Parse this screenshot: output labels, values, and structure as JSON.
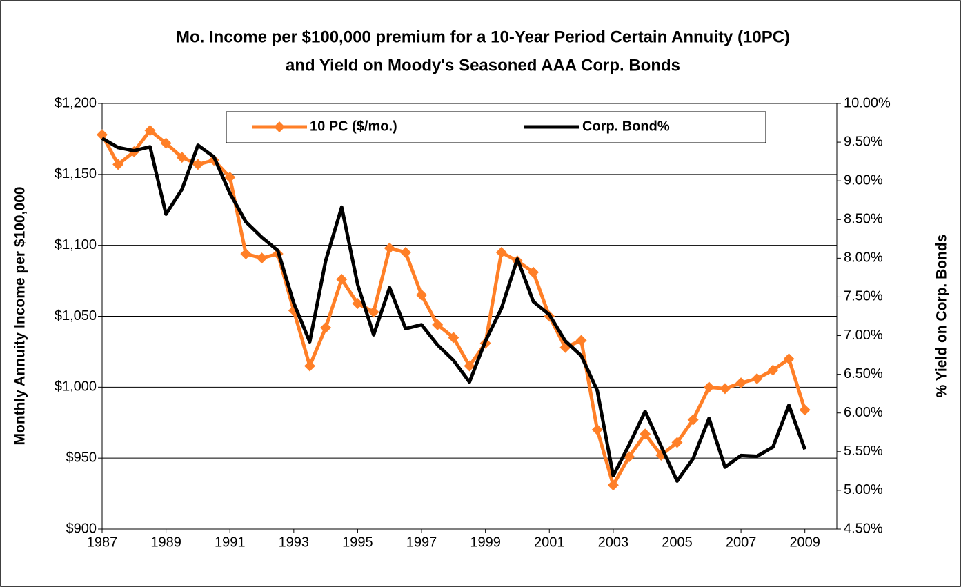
{
  "chart_data": {
    "type": "line",
    "title": "Mo. Income per $100,000 premium for a 10-Year Period Certain Annuity (10PC)",
    "subtitle": "and Yield on Moody's Seasoned AAA Corp. Bonds",
    "y_label": "Monthly Annuity Income per $100,000",
    "y2_label": "% Yield on Corp. Bonds",
    "x": [
      1987,
      1987.5,
      1988,
      1988.5,
      1989,
      1989.5,
      1990,
      1990.5,
      1991,
      1991.5,
      1992,
      1992.5,
      1993,
      1993.5,
      1994,
      1994.5,
      1995,
      1995.5,
      1996,
      1996.5,
      1997,
      1997.5,
      1998,
      1998.5,
      1999,
      1999.5,
      2000,
      2000.5,
      2001,
      2001.5,
      2002,
      2002.5,
      2003,
      2003.5,
      2004,
      2004.5,
      2005,
      2005.5,
      2006,
      2006.5,
      2007,
      2007.5,
      2008,
      2008.5,
      2009
    ],
    "series": [
      {
        "name": "10 PC ($/mo.)",
        "color": "#ff7f27",
        "marker": "diamond",
        "values": [
          1178,
          1157,
          1166,
          1181,
          1172,
          1162,
          1157,
          1160,
          1148,
          1094,
          1091,
          1094,
          1054,
          1015,
          1042,
          1076,
          1059,
          1053,
          1098,
          1095,
          1065,
          1044,
          1035,
          1015,
          1031,
          1095,
          1089,
          1081,
          1050,
          1028,
          1033,
          970,
          931,
          951,
          967,
          952,
          961,
          977,
          1000,
          999,
          1003,
          1006,
          1012,
          1020,
          984
        ]
      },
      {
        "name": "Corp. Bond%",
        "color": "#000000",
        "axis": "y2",
        "values": [
          9.55,
          9.43,
          9.39,
          9.44,
          8.57,
          8.89,
          9.46,
          9.31,
          8.84,
          8.47,
          8.27,
          8.1,
          7.42,
          6.92,
          7.97,
          8.66,
          7.66,
          7.01,
          7.62,
          7.09,
          7.14,
          6.88,
          6.68,
          6.4,
          6.93,
          7.35,
          7.99,
          7.44,
          7.27,
          6.93,
          6.74,
          6.29,
          5.19,
          5.59,
          6.02,
          5.57,
          5.12,
          5.41,
          5.93,
          5.3,
          5.45,
          5.44,
          5.56,
          6.1,
          5.53
        ]
      }
    ],
    "xlim": [
      1987,
      2010
    ],
    "xticks": [
      1987,
      1989,
      1991,
      1993,
      1995,
      1997,
      1999,
      2001,
      2003,
      2005,
      2007,
      2009
    ],
    "ylim": [
      900,
      1200
    ],
    "yticks": [
      {
        "value": 900,
        "label": "$900"
      },
      {
        "value": 950,
        "label": "$950"
      },
      {
        "value": 1000,
        "label": "$1,000"
      },
      {
        "value": 1050,
        "label": "$1,050"
      },
      {
        "value": 1100,
        "label": "$1,100"
      },
      {
        "value": 1150,
        "label": "$1,150"
      },
      {
        "value": 1200,
        "label": "$1,200"
      }
    ],
    "y2lim": [
      4.5,
      10
    ],
    "y2ticks": [
      {
        "value": 4.5,
        "label": "4.50%"
      },
      {
        "value": 5,
        "label": "5.00%"
      },
      {
        "value": 5.5,
        "label": "5.50%"
      },
      {
        "value": 6,
        "label": "6.00%"
      },
      {
        "value": 6.5,
        "label": "6.50%"
      },
      {
        "value": 7,
        "label": "7.00%"
      },
      {
        "value": 7.5,
        "label": "7.50%"
      },
      {
        "value": 8,
        "label": "8.00%"
      },
      {
        "value": 8.5,
        "label": "8.50%"
      },
      {
        "value": 9,
        "label": "9.00%"
      },
      {
        "value": 9.5,
        "label": "9.50%"
      },
      {
        "value": 10,
        "label": "10.00%"
      }
    ],
    "grid": true,
    "legend": "top"
  }
}
